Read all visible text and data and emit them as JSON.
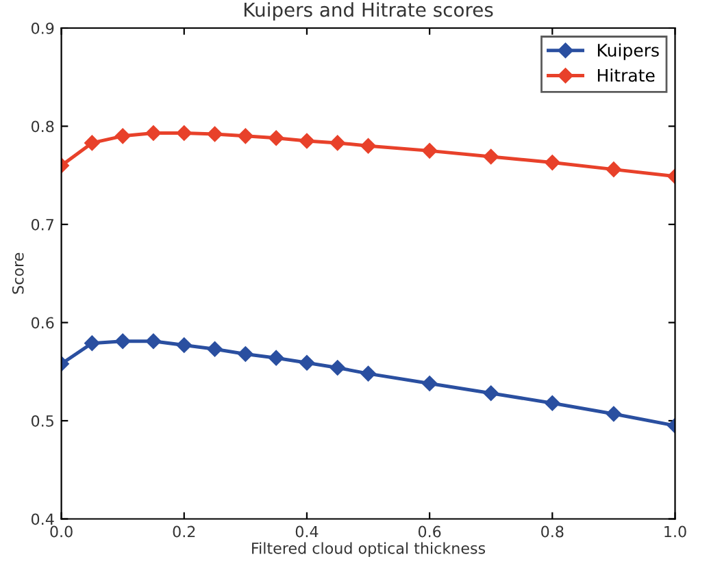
{
  "chart_data": {
    "type": "line",
    "title": "Kuipers and Hitrate scores",
    "xlabel": "Filtered cloud optical thickness",
    "ylabel": "Score",
    "x": [
      0,
      0.05,
      0.1,
      0.15,
      0.2,
      0.25,
      0.3,
      0.35,
      0.4,
      0.45,
      0.5,
      0.6,
      0.7,
      0.8,
      0.9,
      1.0
    ],
    "series": [
      {
        "name": "Kuipers",
        "color": "#2a4fa0",
        "values": [
          0.558,
          0.579,
          0.581,
          0.581,
          0.577,
          0.573,
          0.568,
          0.564,
          0.559,
          0.554,
          0.548,
          0.538,
          0.528,
          0.518,
          0.507,
          0.495
        ]
      },
      {
        "name": "Hitrate",
        "color": "#e8412a",
        "values": [
          0.76,
          0.783,
          0.79,
          0.793,
          0.793,
          0.792,
          0.79,
          0.788,
          0.785,
          0.783,
          0.78,
          0.775,
          0.769,
          0.763,
          0.756,
          0.749
        ]
      }
    ],
    "xlim": [
      0,
      1
    ],
    "ylim": [
      0.4,
      0.9
    ],
    "xticks": [
      {
        "value": 0,
        "label": "0.0"
      },
      0.2,
      0.4,
      0.6,
      0.8,
      {
        "value": 1,
        "label": "1.0"
      }
    ],
    "yticks": [
      0.4,
      0.5,
      0.6,
      0.7,
      0.8,
      0.9
    ],
    "grid": false,
    "legend": "top right",
    "marker": "diamond",
    "line_style": "solid"
  }
}
